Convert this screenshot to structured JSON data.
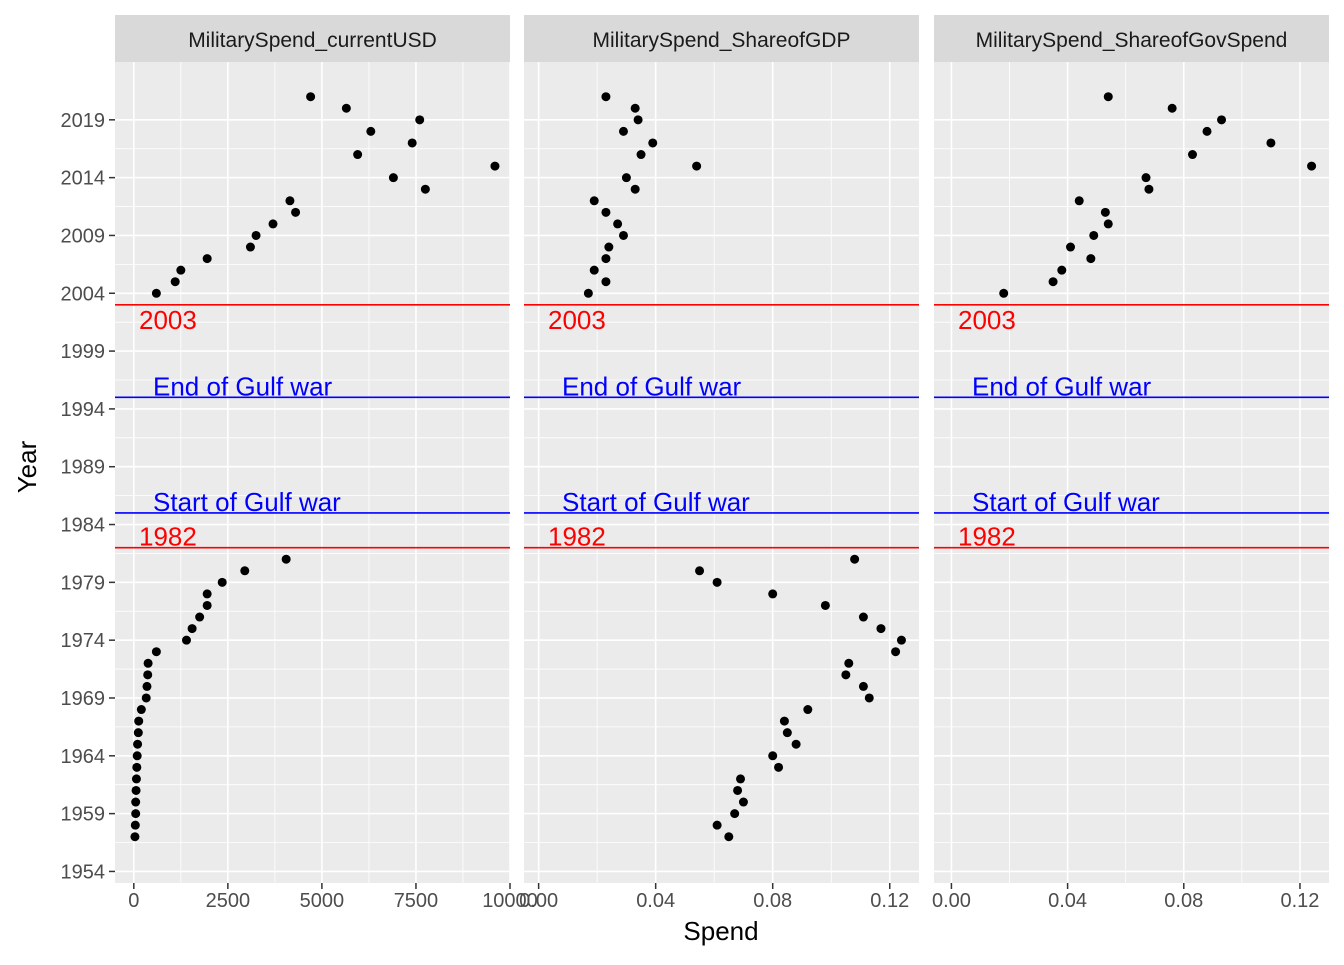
{
  "chart_data": {
    "type": "scatter",
    "xlabel": "Spend",
    "ylabel": "Year",
    "grid": true,
    "legend": "none",
    "y_axis": {
      "range": [
        1953,
        2024
      ],
      "ticks": [
        1954,
        1959,
        1964,
        1969,
        1974,
        1979,
        1984,
        1989,
        1994,
        1999,
        2004,
        2009,
        2014,
        2019
      ],
      "tick_labels": [
        "1954",
        "1959",
        "1964",
        "1969",
        "1974",
        "1979",
        "1984",
        "1989",
        "1994",
        "1999",
        "2004",
        "2009",
        "2014",
        "2019"
      ]
    },
    "reference_lines": [
      {
        "year": 2003,
        "label": "2003",
        "color": "#ff0000"
      },
      {
        "year": 1995,
        "label": "End of Gulf war",
        "color": "#0000ff"
      },
      {
        "year": 1985,
        "label": "Start of Gulf war",
        "color": "#0000ff"
      },
      {
        "year": 1982,
        "label": "1982",
        "color": "#ff0000"
      }
    ],
    "panels": [
      {
        "title": "MilitarySpend_currentUSD",
        "xlim": [
          -500,
          10000
        ],
        "x_ticks": [
          0,
          2500,
          5000,
          7500,
          10000
        ],
        "x_tick_labels": [
          "0",
          "2500",
          "5000",
          "7500",
          "10000"
        ],
        "points": [
          {
            "x": 30,
            "y": 1957
          },
          {
            "x": 40,
            "y": 1958
          },
          {
            "x": 50,
            "y": 1959
          },
          {
            "x": 50,
            "y": 1960
          },
          {
            "x": 60,
            "y": 1961
          },
          {
            "x": 70,
            "y": 1962
          },
          {
            "x": 80,
            "y": 1963
          },
          {
            "x": 90,
            "y": 1964
          },
          {
            "x": 100,
            "y": 1965
          },
          {
            "x": 120,
            "y": 1966
          },
          {
            "x": 130,
            "y": 1967
          },
          {
            "x": 200,
            "y": 1968
          },
          {
            "x": 330,
            "y": 1969
          },
          {
            "x": 350,
            "y": 1970
          },
          {
            "x": 370,
            "y": 1971
          },
          {
            "x": 380,
            "y": 1972
          },
          {
            "x": 600,
            "y": 1973
          },
          {
            "x": 1400,
            "y": 1974
          },
          {
            "x": 1550,
            "y": 1975
          },
          {
            "x": 1750,
            "y": 1976
          },
          {
            "x": 1950,
            "y": 1977
          },
          {
            "x": 1950,
            "y": 1978
          },
          {
            "x": 2350,
            "y": 1979
          },
          {
            "x": 2950,
            "y": 1980
          },
          {
            "x": 4050,
            "y": 1981
          },
          {
            "x": 600,
            "y": 2004
          },
          {
            "x": 1100,
            "y": 2005
          },
          {
            "x": 1250,
            "y": 2006
          },
          {
            "x": 1950,
            "y": 2007
          },
          {
            "x": 3100,
            "y": 2008
          },
          {
            "x": 3250,
            "y": 2009
          },
          {
            "x": 3700,
            "y": 2010
          },
          {
            "x": 4300,
            "y": 2011
          },
          {
            "x": 4150,
            "y": 2012
          },
          {
            "x": 7750,
            "y": 2013
          },
          {
            "x": 6900,
            "y": 2014
          },
          {
            "x": 9600,
            "y": 2015
          },
          {
            "x": 5950,
            "y": 2016
          },
          {
            "x": 7400,
            "y": 2017
          },
          {
            "x": 6300,
            "y": 2018
          },
          {
            "x": 7600,
            "y": 2019
          },
          {
            "x": 5650,
            "y": 2020
          },
          {
            "x": 4700,
            "y": 2021
          }
        ]
      },
      {
        "title": "MilitarySpend_ShareofGDP",
        "xlim": [
          -0.005,
          0.13
        ],
        "x_ticks": [
          0,
          0.04,
          0.08,
          0.12
        ],
        "x_tick_labels": [
          "0.00",
          "0.04",
          "0.08",
          "0.12"
        ],
        "points": [
          {
            "x": 0.065,
            "y": 1957
          },
          {
            "x": 0.061,
            "y": 1958
          },
          {
            "x": 0.067,
            "y": 1959
          },
          {
            "x": 0.07,
            "y": 1960
          },
          {
            "x": 0.068,
            "y": 1961
          },
          {
            "x": 0.069,
            "y": 1962
          },
          {
            "x": 0.082,
            "y": 1963
          },
          {
            "x": 0.08,
            "y": 1964
          },
          {
            "x": 0.088,
            "y": 1965
          },
          {
            "x": 0.085,
            "y": 1966
          },
          {
            "x": 0.084,
            "y": 1967
          },
          {
            "x": 0.092,
            "y": 1968
          },
          {
            "x": 0.113,
            "y": 1969
          },
          {
            "x": 0.111,
            "y": 1970
          },
          {
            "x": 0.105,
            "y": 1971
          },
          {
            "x": 0.106,
            "y": 1972
          },
          {
            "x": 0.122,
            "y": 1973
          },
          {
            "x": 0.124,
            "y": 1974
          },
          {
            "x": 0.117,
            "y": 1975
          },
          {
            "x": 0.111,
            "y": 1976
          },
          {
            "x": 0.098,
            "y": 1977
          },
          {
            "x": 0.08,
            "y": 1978
          },
          {
            "x": 0.061,
            "y": 1979
          },
          {
            "x": 0.055,
            "y": 1980
          },
          {
            "x": 0.108,
            "y": 1981
          },
          {
            "x": 0.017,
            "y": 2004
          },
          {
            "x": 0.023,
            "y": 2005
          },
          {
            "x": 0.019,
            "y": 2006
          },
          {
            "x": 0.023,
            "y": 2007
          },
          {
            "x": 0.024,
            "y": 2008
          },
          {
            "x": 0.029,
            "y": 2009
          },
          {
            "x": 0.027,
            "y": 2010
          },
          {
            "x": 0.023,
            "y": 2011
          },
          {
            "x": 0.019,
            "y": 2012
          },
          {
            "x": 0.033,
            "y": 2013
          },
          {
            "x": 0.03,
            "y": 2014
          },
          {
            "x": 0.054,
            "y": 2015
          },
          {
            "x": 0.035,
            "y": 2016
          },
          {
            "x": 0.039,
            "y": 2017
          },
          {
            "x": 0.029,
            "y": 2018
          },
          {
            "x": 0.034,
            "y": 2019
          },
          {
            "x": 0.033,
            "y": 2020
          },
          {
            "x": 0.023,
            "y": 2021
          }
        ]
      },
      {
        "title": "MilitarySpend_ShareofGovSpend",
        "xlim": [
          -0.006,
          0.13
        ],
        "x_ticks": [
          0,
          0.04,
          0.08,
          0.12
        ],
        "x_tick_labels": [
          "0.00",
          "0.04",
          "0.08",
          "0.12"
        ],
        "points": [
          {
            "x": 0.018,
            "y": 2004
          },
          {
            "x": 0.035,
            "y": 2005
          },
          {
            "x": 0.038,
            "y": 2006
          },
          {
            "x": 0.048,
            "y": 2007
          },
          {
            "x": 0.041,
            "y": 2008
          },
          {
            "x": 0.049,
            "y": 2009
          },
          {
            "x": 0.054,
            "y": 2010
          },
          {
            "x": 0.053,
            "y": 2011
          },
          {
            "x": 0.044,
            "y": 2012
          },
          {
            "x": 0.068,
            "y": 2013
          },
          {
            "x": 0.067,
            "y": 2014
          },
          {
            "x": 0.124,
            "y": 2015
          },
          {
            "x": 0.083,
            "y": 2016
          },
          {
            "x": 0.11,
            "y": 2017
          },
          {
            "x": 0.088,
            "y": 2018
          },
          {
            "x": 0.093,
            "y": 2019
          },
          {
            "x": 0.076,
            "y": 2020
          },
          {
            "x": 0.054,
            "y": 2021
          }
        ]
      }
    ]
  }
}
